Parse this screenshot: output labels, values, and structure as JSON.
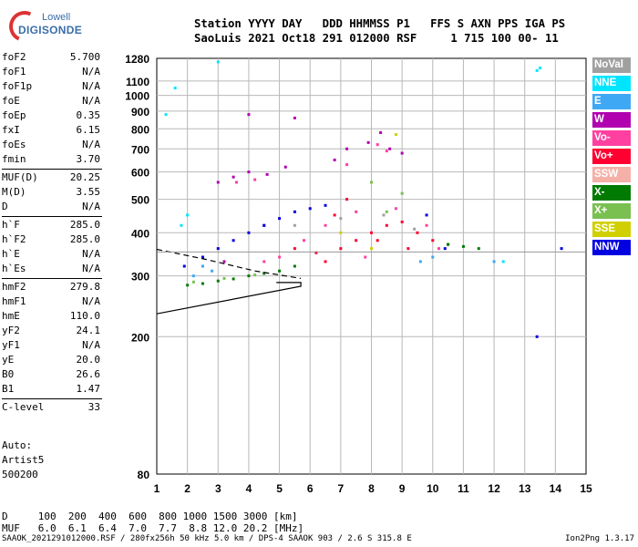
{
  "logo": {
    "line1": "Lowell",
    "line2": "DIGISONDE"
  },
  "header": {
    "line1": "Station YYYY DAY   DDD HHMMSS P1   FFS S AXN PPS IGA PS",
    "line2": "SaoLuis 2021 Oct18 291 012000 RSF     1 715 100 00- 11"
  },
  "params": [
    {
      "name": "foF2",
      "value": "5.700"
    },
    {
      "name": "foF1",
      "value": "N/A"
    },
    {
      "name": "foF1p",
      "value": "N/A"
    },
    {
      "name": "foE",
      "value": "N/A"
    },
    {
      "name": "foEp",
      "value": "0.35"
    },
    {
      "name": "fxI",
      "value": "6.15"
    },
    {
      "name": "foEs",
      "value": "N/A"
    },
    {
      "name": "fmin",
      "value": "3.70"
    },
    {
      "name": "MUF(D)",
      "value": "20.25"
    },
    {
      "name": "M(D)",
      "value": "3.55"
    },
    {
      "name": "D",
      "value": "N/A"
    },
    {
      "name": "h`F",
      "value": "285.0"
    },
    {
      "name": "h`F2",
      "value": "285.0"
    },
    {
      "name": "h`E",
      "value": "N/A"
    },
    {
      "name": "h`Es",
      "value": "N/A"
    },
    {
      "name": "hmF2",
      "value": "279.8"
    },
    {
      "name": "hmF1",
      "value": "N/A"
    },
    {
      "name": "hmE",
      "value": "110.0"
    },
    {
      "name": "yF2",
      "value": "24.1"
    },
    {
      "name": "yF1",
      "value": "N/A"
    },
    {
      "name": "yE",
      "value": "20.0"
    },
    {
      "name": "B0",
      "value": "26.6"
    },
    {
      "name": "B1",
      "value": "1.47"
    },
    {
      "name": "C-level",
      "value": "33"
    }
  ],
  "auto": {
    "line1": "Auto:",
    "line2": "Artist5",
    "line3": "500200"
  },
  "legend": [
    {
      "label": "NoVal",
      "color": "#a0a0a0"
    },
    {
      "label": "NNE",
      "color": "#00e5ff"
    },
    {
      "label": "E",
      "color": "#3ea8f5"
    },
    {
      "label": "W",
      "color": "#b000b0"
    },
    {
      "label": "Vo-",
      "color": "#ff40a0"
    },
    {
      "label": "Vo+",
      "color": "#ff0030"
    },
    {
      "label": "SSW",
      "color": "#f5b0a8"
    },
    {
      "label": "X-",
      "color": "#007a00"
    },
    {
      "label": "X+",
      "color": "#7ac050"
    },
    {
      "label": "SSE",
      "color": "#d0d000"
    },
    {
      "label": "NNW",
      "color": "#0000e0"
    }
  ],
  "muf_table": {
    "line1": "D     100  200  400  600  800 1000 1500 3000 [km]",
    "line2": "MUF   6.0  6.1  6.4  7.0  7.7  8.8 12.0 20.2 [MHz]"
  },
  "footer": "SAAOK_2021291012000.RSF / 280fx256h 50 kHz 5.0 km / DPS-4 SAAOK 903 / 2.6 S 315.8 E",
  "version": "Ion2Png 1.3.17",
  "chart_data": {
    "type": "scatter",
    "x_ticks": [
      "1",
      "2",
      "3",
      "4",
      "5",
      "6",
      "7",
      "8",
      "9",
      "10",
      "11",
      "12",
      "13",
      "14",
      "15"
    ],
    "y_ticks": [
      "80",
      "200",
      "300",
      "400",
      "500",
      "600",
      "700",
      "800",
      "900",
      "1000",
      "1100",
      "1280"
    ],
    "xlim": [
      1,
      15
    ],
    "ylim": [
      80,
      1280
    ],
    "grid": true,
    "y_scale": "log",
    "legend_position": "right",
    "series": [
      {
        "name": "Vo+",
        "color": "#ff0030",
        "points": [
          [
            6.2,
            350
          ],
          [
            7.0,
            360
          ],
          [
            7.5,
            380
          ],
          [
            8.0,
            400
          ],
          [
            8.5,
            420
          ],
          [
            9.0,
            430
          ],
          [
            9.5,
            400
          ],
          [
            10.0,
            380
          ],
          [
            10.5,
            370
          ],
          [
            6.8,
            450
          ],
          [
            7.2,
            500
          ],
          [
            8.2,
            380
          ],
          [
            9.2,
            360
          ],
          [
            5.5,
            360
          ],
          [
            6.5,
            330
          ]
        ]
      },
      {
        "name": "Vo-",
        "color": "#ff40a0",
        "points": [
          [
            5.0,
            340
          ],
          [
            5.8,
            380
          ],
          [
            6.5,
            420
          ],
          [
            7.5,
            460
          ],
          [
            8.8,
            470
          ],
          [
            9.8,
            420
          ],
          [
            10.2,
            360
          ],
          [
            4.5,
            330
          ],
          [
            7.8,
            340
          ],
          [
            3.6,
            560
          ],
          [
            4.2,
            570
          ],
          [
            7.2,
            630
          ],
          [
            8.5,
            690
          ],
          [
            8.2,
            720
          ]
        ]
      },
      {
        "name": "W",
        "color": "#b000b0",
        "points": [
          [
            3.0,
            560
          ],
          [
            3.5,
            580
          ],
          [
            4.0,
            600
          ],
          [
            4.6,
            590
          ],
          [
            5.2,
            620
          ],
          [
            6.8,
            650
          ],
          [
            7.2,
            700
          ],
          [
            7.9,
            730
          ],
          [
            8.3,
            780
          ],
          [
            8.6,
            700
          ],
          [
            9.0,
            680
          ],
          [
            5.5,
            860
          ],
          [
            4.0,
            880
          ],
          [
            3.2,
            330
          ],
          [
            4.5,
            420
          ]
        ]
      },
      {
        "name": "NNE",
        "color": "#00e5ff",
        "points": [
          [
            1.3,
            880
          ],
          [
            1.6,
            1050
          ],
          [
            2.0,
            450
          ],
          [
            1.8,
            420
          ],
          [
            13.4,
            1180
          ],
          [
            13.5,
            1200
          ],
          [
            3.0,
            1250
          ],
          [
            12.3,
            330
          ]
        ]
      },
      {
        "name": "E",
        "color": "#3ea8f5",
        "points": [
          [
            2.2,
            300
          ],
          [
            2.8,
            310
          ],
          [
            9.6,
            330
          ],
          [
            10.0,
            340
          ],
          [
            12.0,
            330
          ],
          [
            2.5,
            320
          ]
        ]
      },
      {
        "name": "X-",
        "color": "#007a00",
        "points": [
          [
            2.0,
            282
          ],
          [
            2.5,
            285
          ],
          [
            3.0,
            290
          ],
          [
            3.5,
            294
          ],
          [
            4.0,
            300
          ],
          [
            4.5,
            305
          ],
          [
            5.0,
            310
          ],
          [
            5.5,
            320
          ],
          [
            10.5,
            370
          ],
          [
            11.0,
            365
          ],
          [
            11.5,
            360
          ]
        ]
      },
      {
        "name": "X+",
        "color": "#7ac050",
        "points": [
          [
            2.2,
            288
          ],
          [
            3.2,
            295
          ],
          [
            4.2,
            302
          ],
          [
            8.0,
            560
          ],
          [
            8.5,
            460
          ],
          [
            9.0,
            520
          ]
        ]
      },
      {
        "name": "SSE",
        "color": "#d0d000",
        "points": [
          [
            8.8,
            770
          ],
          [
            7.0,
            400
          ],
          [
            8.0,
            360
          ]
        ]
      },
      {
        "name": "NNW",
        "color": "#0000e0",
        "points": [
          [
            1.9,
            320
          ],
          [
            2.5,
            340
          ],
          [
            3.0,
            360
          ],
          [
            3.5,
            380
          ],
          [
            4.0,
            400
          ],
          [
            4.5,
            420
          ],
          [
            5.0,
            440
          ],
          [
            5.5,
            460
          ],
          [
            6.0,
            470
          ],
          [
            6.5,
            480
          ],
          [
            9.8,
            450
          ],
          [
            10.4,
            360
          ],
          [
            13.4,
            200
          ],
          [
            14.2,
            360
          ]
        ]
      },
      {
        "name": "NoVal",
        "color": "#a0a0a0",
        "points": [
          [
            5.5,
            420
          ],
          [
            7.0,
            440
          ],
          [
            8.4,
            450
          ],
          [
            9.4,
            410
          ]
        ]
      }
    ],
    "trace_lines": [
      {
        "style": "solid",
        "points": [
          [
            1.0,
            233
          ],
          [
            5.7,
            280
          ],
          [
            5.7,
            287
          ],
          [
            4.9,
            287
          ]
        ]
      },
      {
        "style": "dashed",
        "points": [
          [
            1.0,
            358
          ],
          [
            2.6,
            335
          ],
          [
            4.2,
            310
          ],
          [
            5.7,
            295
          ]
        ]
      },
      {
        "style": "solid-grey",
        "points": [
          [
            1.0,
            352
          ],
          [
            15.0,
            352
          ]
        ]
      }
    ]
  }
}
